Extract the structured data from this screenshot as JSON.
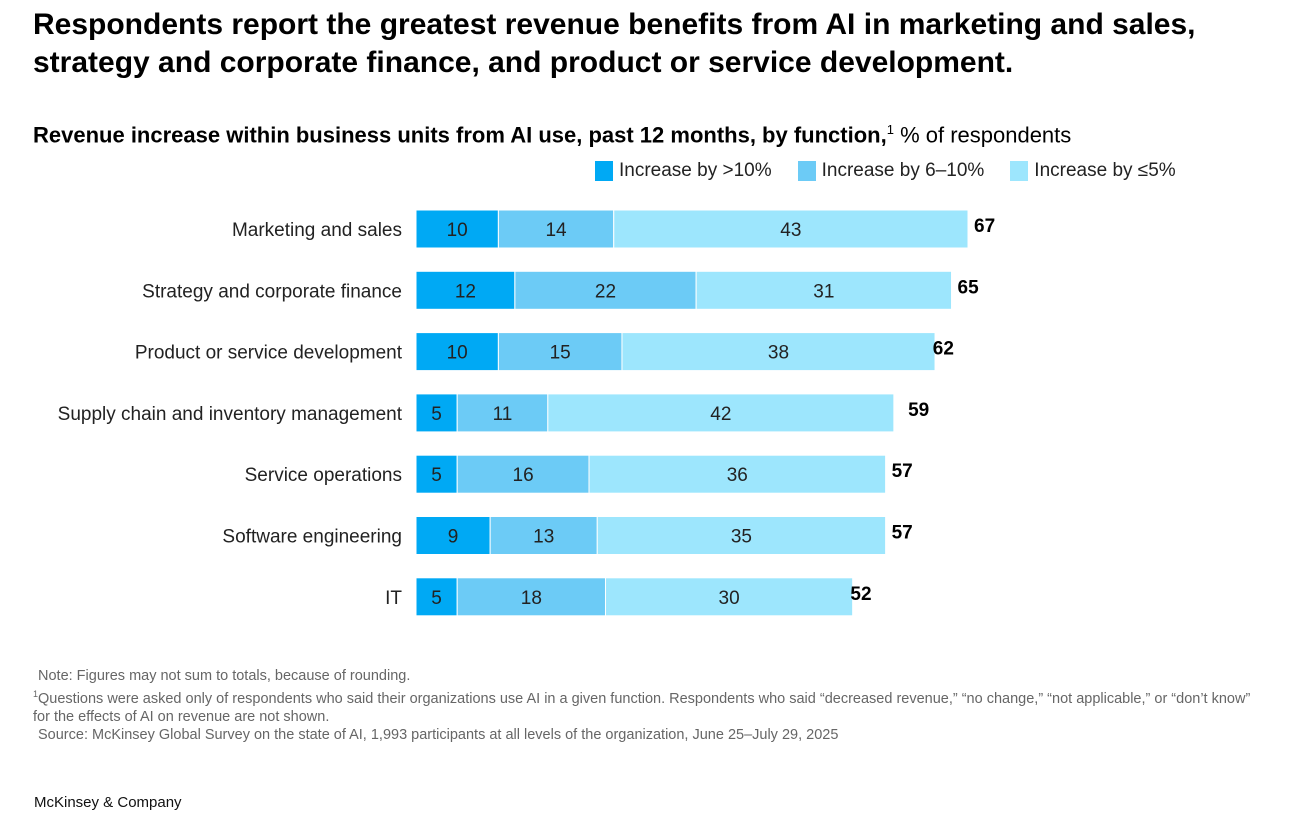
{
  "title": "Respondents report the greatest revenue benefits from AI in marketing and sales, strategy and corporate finance, and product or service development.",
  "chart_data": {
    "type": "bar",
    "orientation": "horizontal-stacked",
    "title": "Revenue increase within business units from AI use, past 12 months, by function,",
    "title_footnote": "1",
    "unit_label": "% of respondents",
    "categories": [
      "Marketing and sales",
      "Strategy and corporate finance",
      "Product or service development",
      "Supply chain and inventory management",
      "Service operations",
      "Software engineering",
      "IT"
    ],
    "series": [
      {
        "name": "Increase by >10%",
        "color": "#00A9F4",
        "values": [
          10,
          12,
          10,
          5,
          5,
          9,
          5
        ]
      },
      {
        "name": "Increase by 6–10%",
        "color": "#6CCBF6",
        "values": [
          14,
          22,
          15,
          11,
          16,
          13,
          18
        ]
      },
      {
        "name": "Increase by ≤5%",
        "color": "#9DE6FD",
        "values": [
          43,
          31,
          38,
          42,
          36,
          35,
          30
        ]
      }
    ],
    "totals": [
      67,
      65,
      62,
      59,
      57,
      57,
      52
    ],
    "xlim": [
      0,
      67
    ],
    "legend_position": "top-right",
    "grid": false
  },
  "notes": {
    "note": "Note: Figures may not sum to totals, because of rounding.",
    "footnote_marker": "1",
    "footnote": "Questions were asked only of respondents who said their organizations use AI in a given function. Respondents who said “decreased revenue,” “no change,” “not applicable,” or “don’t know” for the effects of AI on revenue are not shown.",
    "source": "Source: McKinsey Global Survey on the state of AI, 1,993 participants at all levels of the organization, June 25–July 29, 2025"
  },
  "brand": "McKinsey & Company"
}
